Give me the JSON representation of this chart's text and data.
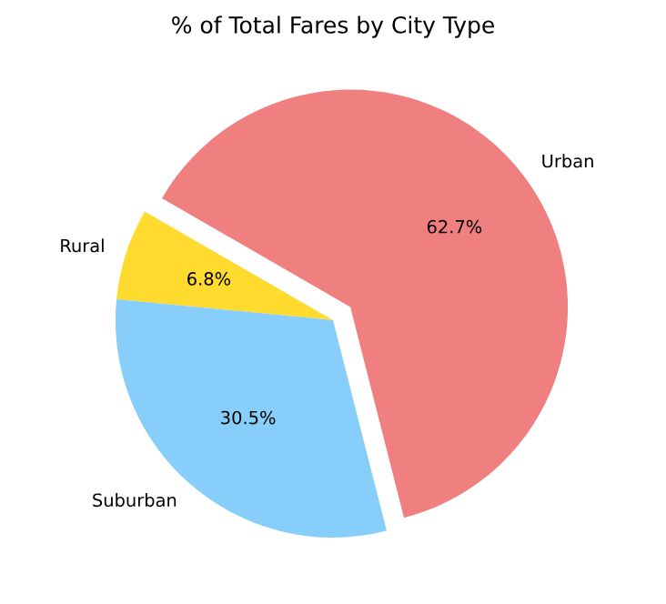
{
  "chart_data": {
    "type": "pie",
    "title": "% of Total Fares by City Type",
    "categories": [
      "Rural",
      "Suburban",
      "Urban"
    ],
    "values": [
      6.8,
      30.5,
      62.7
    ],
    "colors": [
      "#ffda2f",
      "#87cefa",
      "#f08080"
    ],
    "value_labels": [
      "6.8%",
      "30.5%",
      "62.7%"
    ]
  }
}
